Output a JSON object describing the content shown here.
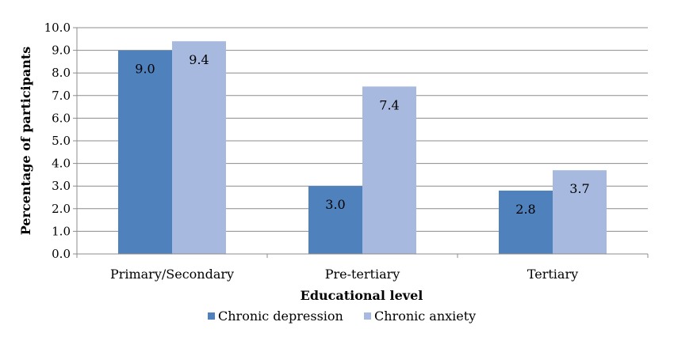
{
  "chart_data": {
    "type": "bar",
    "title": "",
    "xlabel": "Educational level",
    "ylabel": "Percentage of participants",
    "categories": [
      "Primary/Secondary",
      "Pre-tertiary",
      "Tertiary"
    ],
    "series": [
      {
        "name": "Chronic depression",
        "values": [
          9.0,
          3.0,
          2.8
        ],
        "color": "#4f81bd"
      },
      {
        "name": "Chronic anxiety",
        "values": [
          9.4,
          7.4,
          3.7
        ],
        "color": "#a7b9de"
      }
    ],
    "data_labels": [
      [
        "9.0",
        "3.0",
        "2.8"
      ],
      [
        "9.4",
        "7.4",
        "3.7"
      ]
    ],
    "ylim": [
      0,
      10
    ],
    "yticks": [
      "0.0",
      "1.0",
      "2.0",
      "3.0",
      "4.0",
      "5.0",
      "6.0",
      "7.0",
      "8.0",
      "9.0",
      "10.0"
    ],
    "grid": true,
    "legend_position": "bottom"
  }
}
